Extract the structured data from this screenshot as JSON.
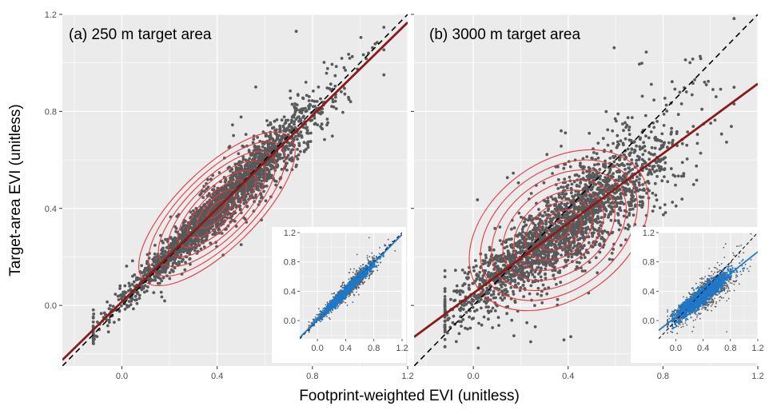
{
  "figure": {
    "xlabel": "Footprint-weighted EVI (unitless)",
    "ylabel": "Target-area EVI (unitless)"
  },
  "colors": {
    "panel_bg": "#ebebeb",
    "grid": "#ffffff",
    "points": "#595959",
    "contour": "#e8383d",
    "fit_line": "#8b1a1a",
    "inset_points": "#1f78c8",
    "one_to_one": "#000000"
  },
  "chart_data": [
    {
      "type": "scatter",
      "title": "(a) 250 m target area",
      "xlim": [
        -0.25,
        1.2
      ],
      "ylim": [
        -0.25,
        1.2
      ],
      "x_ticks": [
        0.0,
        0.4,
        0.8,
        1.2
      ],
      "y_ticks": [
        0.0,
        0.4,
        0.8,
        1.2
      ],
      "x_tick_labels": [
        "0.0",
        "0.4",
        "0.8",
        "1.2"
      ],
      "y_tick_labels": [
        "0.0",
        "0.4",
        "0.8",
        "1.2"
      ],
      "grid": true,
      "reference_line": {
        "name": "1:1",
        "style": "dashed",
        "slope": 1,
        "intercept": 0
      },
      "fit_line": {
        "slope": 0.96,
        "intercept": 0.015
      },
      "point_cloud": {
        "x_center": 0.42,
        "x_spread": 0.2,
        "residual_sd": 0.055,
        "n_points": 2500
      },
      "density_contours": {
        "color": "#e8383d",
        "levels": 8
      },
      "inset": {
        "xlim": [
          -0.25,
          1.2
        ],
        "ylim": [
          -0.25,
          1.2
        ],
        "x_tick_labels": [
          "0.0",
          "0.4",
          "0.8",
          "1.2"
        ],
        "y_tick_labels": [
          "0.0",
          "0.4",
          "0.8",
          "1.2"
        ],
        "fit_line": {
          "slope": 0.97,
          "intercept": 0.01
        }
      }
    },
    {
      "type": "scatter",
      "title": "(b) 3000 m target area",
      "xlim": [
        -0.25,
        1.2
      ],
      "ylim": [
        -0.25,
        1.2
      ],
      "x_ticks": [
        0.0,
        0.4,
        0.8,
        1.2
      ],
      "y_ticks": [
        0.0,
        0.4,
        0.8,
        1.2
      ],
      "x_tick_labels": [
        "0.0",
        "0.4",
        "0.8",
        "1.2"
      ],
      "y_tick_labels": [
        "0.0",
        "0.4",
        "0.8",
        "1.2"
      ],
      "grid": true,
      "reference_line": {
        "name": "1:1",
        "style": "dashed",
        "slope": 1,
        "intercept": 0
      },
      "fit_line": {
        "slope": 0.72,
        "intercept": 0.05
      },
      "point_cloud": {
        "x_center": 0.38,
        "x_spread": 0.22,
        "residual_sd": 0.11,
        "n_points": 2500
      },
      "density_contours": {
        "color": "#e8383d",
        "levels": 8
      },
      "inset": {
        "xlim": [
          -0.25,
          1.2
        ],
        "ylim": [
          -0.25,
          1.2
        ],
        "x_tick_labels": [
          "0.0",
          "0.4",
          "0.8",
          "1.2"
        ],
        "y_tick_labels": [
          "0.0",
          "0.4",
          "0.8",
          "1.2"
        ],
        "fit_line": {
          "slope": 0.74,
          "intercept": 0.05
        }
      }
    }
  ]
}
